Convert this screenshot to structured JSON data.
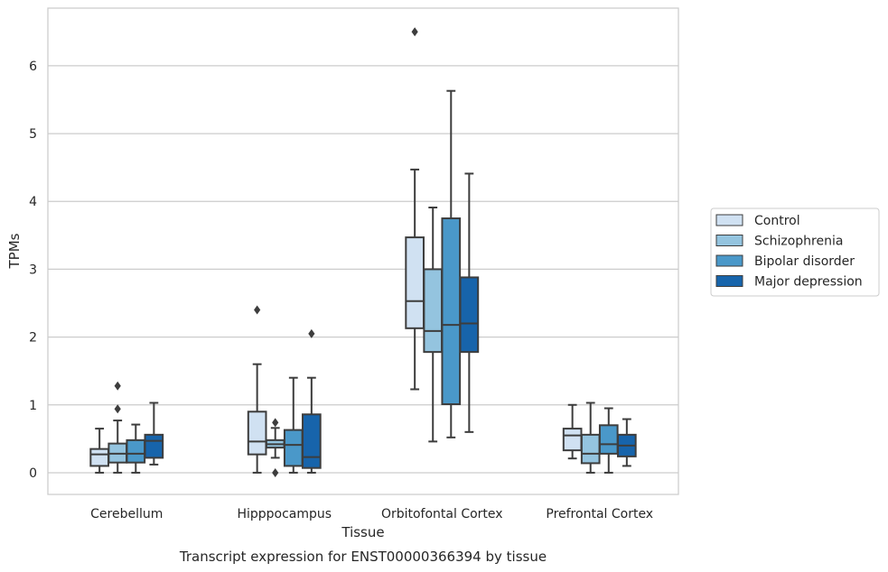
{
  "chart_data": {
    "type": "box",
    "title": "",
    "caption": "Transcript expression for ENST00000366394 by tissue",
    "xlabel": "Tissue",
    "ylabel": "TPMs",
    "ylim": [
      -0.32,
      6.85
    ],
    "yticks": [
      0,
      1,
      2,
      3,
      4,
      5,
      6
    ],
    "grid": true,
    "legend_position": "right",
    "categories": [
      "Cerebellum",
      "Hipppocampus",
      "Orbitofontal Cortex",
      "Prefrontal Cortex"
    ],
    "series": [
      {
        "name": "Control",
        "color": "#d0e1f2",
        "boxes": [
          {
            "min": 0.0,
            "q1": 0.1,
            "median": 0.27,
            "q3": 0.35,
            "max": 0.65,
            "outliers": []
          },
          {
            "min": 0.0,
            "q1": 0.27,
            "median": 0.46,
            "q3": 0.9,
            "max": 1.6,
            "outliers": [
              2.4
            ]
          },
          {
            "min": 1.23,
            "q1": 2.13,
            "median": 2.53,
            "q3": 3.47,
            "max": 4.47,
            "outliers": [
              6.5
            ]
          },
          {
            "min": 0.21,
            "q1": 0.33,
            "median": 0.55,
            "q3": 0.65,
            "max": 1.0,
            "outliers": []
          }
        ]
      },
      {
        "name": "Schizophrenia",
        "color": "#94c4df",
        "boxes": [
          {
            "min": 0.0,
            "q1": 0.15,
            "median": 0.28,
            "q3": 0.43,
            "max": 0.77,
            "outliers": [
              0.94,
              1.28
            ]
          },
          {
            "min": 0.22,
            "q1": 0.37,
            "median": 0.42,
            "q3": 0.48,
            "max": 0.66,
            "outliers": [
              0.0,
              0.74
            ]
          },
          {
            "min": 0.46,
            "q1": 1.78,
            "median": 2.09,
            "q3": 3.0,
            "max": 3.91,
            "outliers": []
          },
          {
            "min": 0.0,
            "q1": 0.14,
            "median": 0.28,
            "q3": 0.56,
            "max": 1.03,
            "outliers": []
          }
        ]
      },
      {
        "name": "Bipolar disorder",
        "color": "#4a98c9",
        "boxes": [
          {
            "min": 0.0,
            "q1": 0.15,
            "median": 0.28,
            "q3": 0.48,
            "max": 0.71,
            "outliers": []
          },
          {
            "min": 0.0,
            "q1": 0.1,
            "median": 0.41,
            "q3": 0.63,
            "max": 1.4,
            "outliers": []
          },
          {
            "min": 0.52,
            "q1": 1.01,
            "median": 2.18,
            "q3": 3.75,
            "max": 5.63,
            "outliers": []
          },
          {
            "min": 0.0,
            "q1": 0.28,
            "median": 0.42,
            "q3": 0.7,
            "max": 0.95,
            "outliers": []
          }
        ]
      },
      {
        "name": "Major depression",
        "color": "#1764ab",
        "boxes": [
          {
            "min": 0.12,
            "q1": 0.22,
            "median": 0.47,
            "q3": 0.56,
            "max": 1.03,
            "outliers": []
          },
          {
            "min": 0.0,
            "q1": 0.07,
            "median": 0.23,
            "q3": 0.86,
            "max": 1.4,
            "outliers": [
              2.05
            ]
          },
          {
            "min": 0.6,
            "q1": 1.78,
            "median": 2.2,
            "q3": 2.88,
            "max": 4.41,
            "outliers": []
          },
          {
            "min": 0.1,
            "q1": 0.24,
            "median": 0.4,
            "q3": 0.56,
            "max": 0.79,
            "outliers": []
          }
        ]
      }
    ]
  }
}
